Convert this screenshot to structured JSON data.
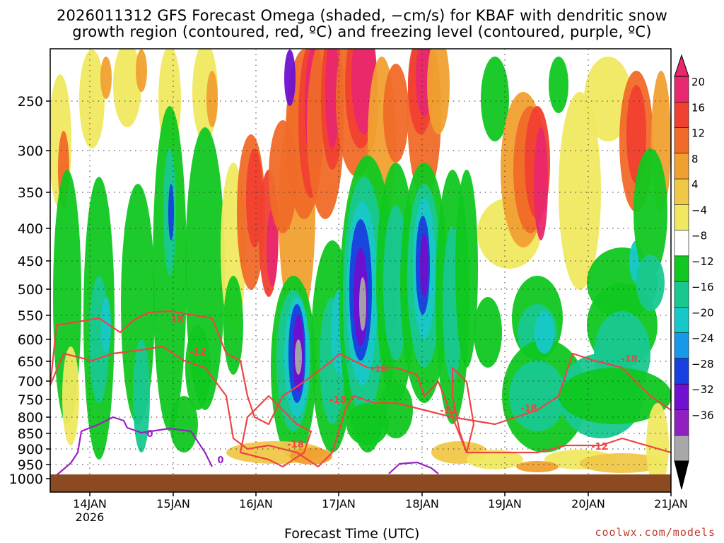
{
  "header": {
    "title_line1": "2026011312 GFS Forecast Omega (shaded, −cm/s) for KBAF with dendritic snow",
    "title_line2": "growth region (contoured, red, ºC) and freezing level (contoured, purple, ºC)"
  },
  "footer": {
    "x_axis_title": "Forecast Time (UTC)",
    "credit": "coolwx.com/models"
  },
  "chart_data": {
    "type": "heatmap",
    "title": "2026011312 GFS Forecast Omega (shaded, −cm/s) for KBAF",
    "xlabel": "Forecast Time (UTC)",
    "ylabel": "",
    "x_ticks": [
      "14JAN",
      "15JAN",
      "16JAN",
      "17JAN",
      "18JAN",
      "19JAN",
      "20JAN",
      "21JAN"
    ],
    "x_sublabel": "2026",
    "y_ticks": [
      250,
      300,
      350,
      400,
      450,
      500,
      550,
      600,
      650,
      700,
      750,
      800,
      850,
      900,
      950,
      1000
    ],
    "y_unit": "hPa",
    "xlim": [
      "2026-01-13 12Z",
      "2026-01-21 00Z"
    ],
    "ylim": [
      1020,
      200
    ],
    "grid": true,
    "colorbar": {
      "labels": [
        "20",
        "16",
        "12",
        "8",
        "4",
        "−4",
        "−8",
        "−12",
        "−16",
        "−20",
        "−24",
        "−28",
        "−32",
        "−36"
      ],
      "colors": [
        "#e8286e",
        "#f04030",
        "#f06a28",
        "#f0a030",
        "#f0c848",
        "#f0e860",
        "#ffffff",
        "#10c820",
        "#18c890",
        "#18c8c8",
        "#1898e8",
        "#1840e0",
        "#7010d0",
        "#9020c0",
        "#a8a8a8"
      ]
    },
    "contour_labels": [
      {
        "value": "-18",
        "color": "#ee4444"
      },
      {
        "value": "-12",
        "color": "#ee4444"
      },
      {
        "value": "-18",
        "color": "#ee4444"
      },
      {
        "value": "-18",
        "color": "#ee4444"
      },
      {
        "value": "-12",
        "color": "#ee4444"
      },
      {
        "value": "-18",
        "color": "#ee4444"
      },
      {
        "value": "-18",
        "color": "#ee4444"
      },
      {
        "value": "-12",
        "color": "#ee4444"
      },
      {
        "value": "-18",
        "color": "#ee4444"
      },
      {
        "value": "0",
        "color": "#9a20c8"
      },
      {
        "value": "0",
        "color": "#9a20c8"
      }
    ],
    "colors": {
      "dgz_contour": "#ee4444",
      "freezing_contour": "#9a20c8",
      "terrain": "#8b4a22"
    }
  }
}
